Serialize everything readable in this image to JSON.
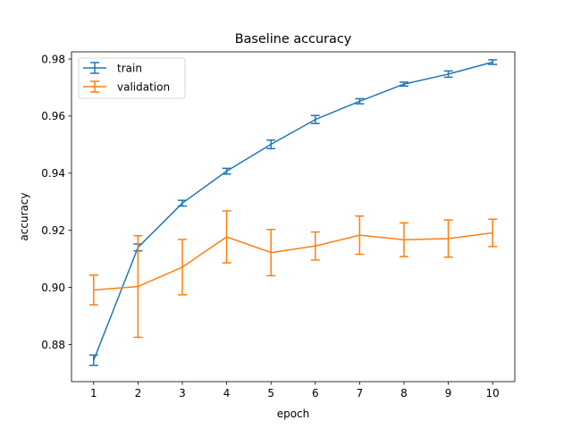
{
  "chart_data": {
    "type": "line",
    "title": "Baseline accuracy",
    "xlabel": "epoch",
    "ylabel": "accuracy",
    "x": [
      1,
      2,
      3,
      4,
      5,
      6,
      7,
      8,
      9,
      10
    ],
    "xticks": [
      "1",
      "2",
      "3",
      "4",
      "5",
      "6",
      "7",
      "8",
      "9",
      "10"
    ],
    "xlim": [
      0.5,
      10.5
    ],
    "ylim": [
      0.867,
      0.9825
    ],
    "yticks": [
      "0.88",
      "0.90",
      "0.92",
      "0.94",
      "0.96",
      "0.98"
    ],
    "ytick_values": [
      0.88,
      0.9,
      0.92,
      0.94,
      0.96,
      0.98
    ],
    "grid": false,
    "legend_position": "top-left",
    "series": [
      {
        "name": "train",
        "color": "#1f77b4",
        "values": [
          0.8745,
          0.914,
          0.9295,
          0.9407,
          0.9501,
          0.9588,
          0.9652,
          0.9712,
          0.9747,
          0.9789
        ],
        "errors": [
          0.0018,
          0.0012,
          0.001,
          0.001,
          0.0015,
          0.0014,
          0.0009,
          0.0007,
          0.0011,
          0.0008
        ]
      },
      {
        "name": "validation",
        "color": "#ff7f0e",
        "values": [
          0.8991,
          0.9003,
          0.9071,
          0.9177,
          0.9122,
          0.9145,
          0.9183,
          0.9167,
          0.9171,
          0.9191
        ],
        "errors": [
          0.0052,
          0.0178,
          0.0097,
          0.0091,
          0.0081,
          0.0049,
          0.0067,
          0.0059,
          0.0065,
          0.0048
        ]
      }
    ]
  }
}
